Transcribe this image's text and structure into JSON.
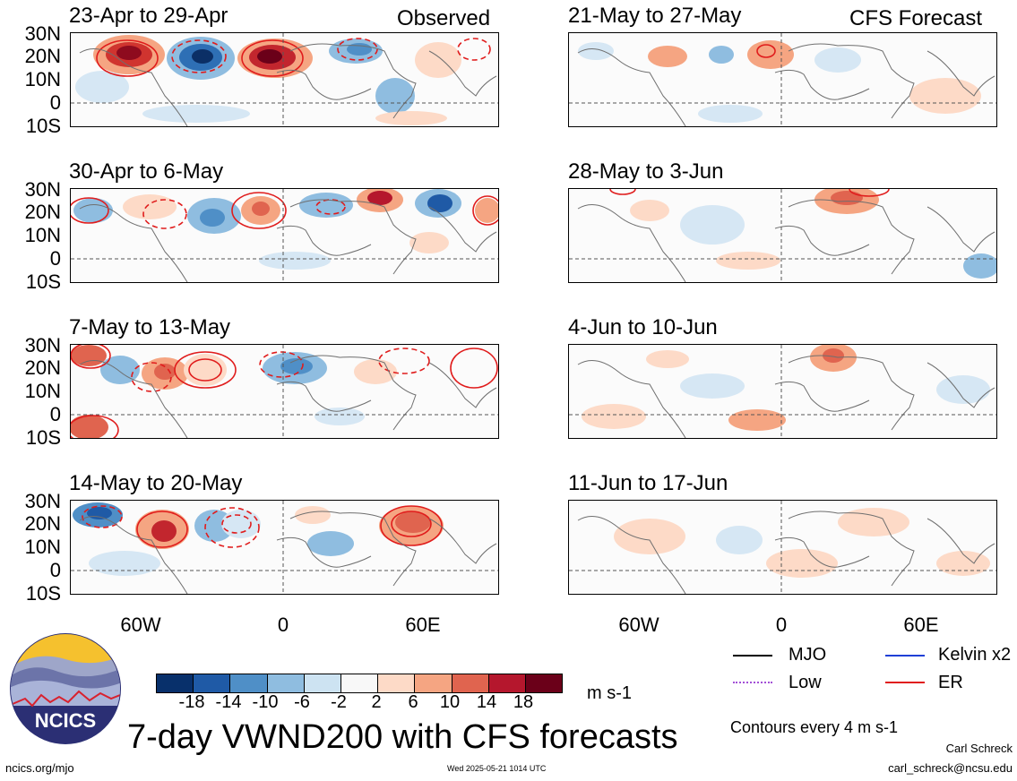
{
  "header": {
    "observed_label": "Observed",
    "forecast_label": "CFS Forecast"
  },
  "observed_panels": [
    {
      "title": "23-Apr to 29-Apr"
    },
    {
      "title": "30-Apr to 6-May"
    },
    {
      "title": "7-May to 13-May"
    },
    {
      "title": "14-May to 20-May"
    }
  ],
  "forecast_panels": [
    {
      "title": "21-May to 27-May"
    },
    {
      "title": "28-May to 3-Jun"
    },
    {
      "title": "4-Jun to 10-Jun"
    },
    {
      "title": "11-Jun to 17-Jun"
    }
  ],
  "lat_labels": [
    "30N",
    "20N",
    "10N",
    "0",
    "10S"
  ],
  "lon_labels": [
    "60W",
    "0",
    "60E"
  ],
  "colorbar": {
    "ticks": [
      "-18",
      "-14",
      "-10",
      "-6",
      "-2",
      "2",
      "6",
      "10",
      "14",
      "18"
    ],
    "colors": [
      "#08306b",
      "#1f5aa6",
      "#4f8fc7",
      "#8fbde0",
      "#cde3f2",
      "#f8f8f8",
      "#fddac7",
      "#f5a582",
      "#e0644f",
      "#b5172d",
      "#6b0019"
    ],
    "units": "m s-1"
  },
  "legend": {
    "mjo": {
      "label": "MJO",
      "color": "#000000"
    },
    "kelvin": {
      "label": "Kelvin x2",
      "color": "#1f3fd6"
    },
    "low": {
      "label": "Low",
      "color": "#a24fd6"
    },
    "er": {
      "label": "ER",
      "color": "#e01c1c"
    },
    "contours_note": "Contours every 4 m s-1"
  },
  "logo": {
    "text": "NCICS"
  },
  "main_title": "7-day VWND200 with CFS forecasts",
  "footer": {
    "url": "ncics.org/mjo",
    "timestamp": "Wed 2025-05-21 1014 UTC",
    "author": "Carl Schreck",
    "email": "carl_schreck@ncsu.edu"
  }
}
